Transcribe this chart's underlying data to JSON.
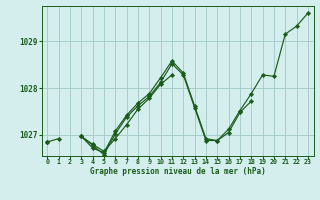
{
  "title": "Graphe pression niveau de la mer (hPa)",
  "bg_color": "#d4eeee",
  "grid_color": "#a8cccc",
  "line_color": "#1a5c1a",
  "marker_color": "#1a5c1a",
  "xlim": [
    -0.5,
    23.5
  ],
  "ylim": [
    1026.55,
    1029.75
  ],
  "yticks": [
    1027,
    1028,
    1029
  ],
  "xticks": [
    0,
    1,
    2,
    3,
    4,
    5,
    6,
    7,
    8,
    9,
    10,
    11,
    12,
    13,
    14,
    15,
    16,
    17,
    18,
    19,
    20,
    21,
    22,
    23
  ],
  "series": [
    [
      1026.85,
      1026.92,
      null,
      1026.97,
      1026.8,
      1026.65,
      1026.92,
      1027.22,
      1027.55,
      1027.78,
      1028.08,
      1028.28,
      null,
      null,
      null,
      null,
      null,
      null,
      null,
      null,
      null,
      null,
      null,
      null
    ],
    [
      1026.85,
      null,
      null,
      1026.97,
      1026.78,
      1026.58,
      1027.02,
      1027.38,
      1027.62,
      1027.82,
      1028.12,
      1028.52,
      1028.28,
      1027.58,
      1026.88,
      1026.88,
      1027.05,
      1027.48,
      1027.72,
      null,
      null,
      null,
      null,
      null
    ],
    [
      1026.85,
      null,
      null,
      1026.97,
      1026.72,
      1026.62,
      1027.08,
      1027.42,
      1027.68,
      1027.88,
      1028.22,
      1028.58,
      1028.32,
      1027.62,
      1026.92,
      1026.88,
      1027.12,
      1027.52,
      1027.88,
      1028.28,
      1028.25,
      1029.15,
      1029.32,
      1029.6
    ]
  ]
}
